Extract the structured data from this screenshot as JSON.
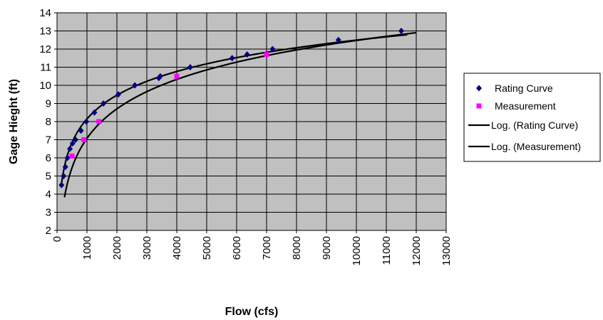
{
  "chart_data": {
    "type": "scatter",
    "title": "",
    "xlabel": "Flow (cfs)",
    "ylabel": "Gage Hieght (ft)",
    "xlim": [
      0,
      13000
    ],
    "ylim": [
      2,
      14
    ],
    "x_ticks": [
      0,
      1000,
      2000,
      3000,
      4000,
      5000,
      6000,
      7000,
      8000,
      9000,
      10000,
      11000,
      12000,
      13000
    ],
    "y_ticks": [
      2,
      3,
      4,
      5,
      6,
      7,
      8,
      9,
      10,
      11,
      12,
      13,
      14
    ],
    "grid": true,
    "plot_background": "#c0c0c0",
    "legend_position": "right",
    "series": [
      {
        "name": "Rating Curve",
        "kind": "points",
        "marker": "diamond",
        "color": "#000080",
        "points": [
          [
            150,
            4.5
          ],
          [
            220,
            5.0
          ],
          [
            280,
            5.5
          ],
          [
            350,
            6.0
          ],
          [
            430,
            6.5
          ],
          [
            520,
            6.8
          ],
          [
            620,
            7.0
          ],
          [
            800,
            7.5
          ],
          [
            980,
            8.0
          ],
          [
            1250,
            8.5
          ],
          [
            1550,
            9.0
          ],
          [
            2050,
            9.5
          ],
          [
            2600,
            10.0
          ],
          [
            3400,
            10.4
          ],
          [
            3450,
            10.5
          ],
          [
            4450,
            11.0
          ],
          [
            5850,
            11.5
          ],
          [
            6350,
            11.7
          ],
          [
            7200,
            12.0
          ],
          [
            9400,
            12.5
          ],
          [
            11500,
            13.0
          ]
        ]
      },
      {
        "name": "Measurement",
        "kind": "points",
        "marker": "square",
        "color": "#ff00ff",
        "points": [
          [
            500,
            6.1
          ],
          [
            900,
            7.0
          ],
          [
            1400,
            8.0
          ],
          [
            4000,
            10.5
          ],
          [
            7000,
            11.7
          ]
        ]
      },
      {
        "name": "Log. (Rating Curve)",
        "kind": "trendline",
        "color": "#000000",
        "x_range": [
          150,
          11700
        ],
        "points": [
          [
            150,
            4.9
          ],
          [
            300,
            5.9
          ],
          [
            600,
            7.0
          ],
          [
            1000,
            7.9
          ],
          [
            2000,
            9.3
          ],
          [
            3000,
            10.1
          ],
          [
            4000,
            10.7
          ],
          [
            6000,
            11.6
          ],
          [
            8000,
            12.2
          ],
          [
            10000,
            12.6
          ],
          [
            11700,
            12.9
          ]
        ]
      },
      {
        "name": "Log. (Measurement)",
        "kind": "trendline",
        "color": "#000000",
        "x_range": [
          250,
          12000
        ],
        "points": [
          [
            250,
            3.7
          ],
          [
            400,
            5.0
          ],
          [
            600,
            6.0
          ],
          [
            1000,
            7.1
          ],
          [
            2000,
            8.7
          ],
          [
            3000,
            9.6
          ],
          [
            4000,
            10.2
          ],
          [
            6000,
            11.3
          ],
          [
            8000,
            12.0
          ],
          [
            10000,
            12.5
          ],
          [
            12000,
            12.9
          ]
        ]
      }
    ]
  }
}
